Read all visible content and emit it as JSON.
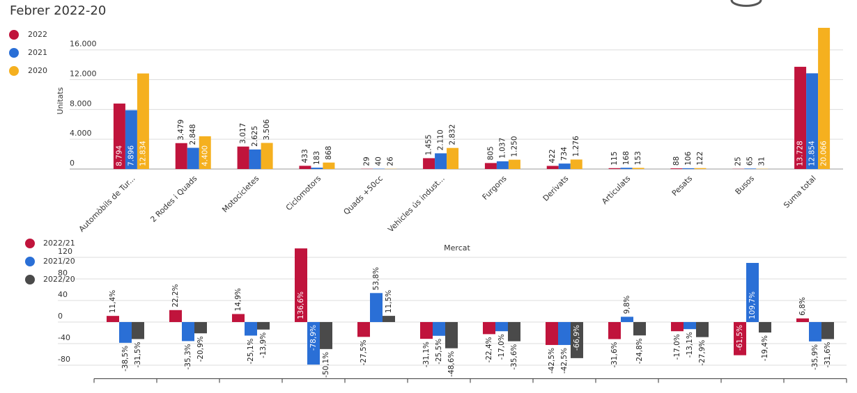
{
  "title": "Febrer 2022-20",
  "chart_data": [
    {
      "type": "bar",
      "y_label": "Unitats",
      "categories": [
        "Automòbils de Tur...",
        "2 Rodes i Quads",
        "Motocicletes",
        "Ciclomotors",
        "Quads +50cc",
        "Vehicles ús indust...",
        "Furgons",
        "Derivats",
        "Articulats",
        "Pesats",
        "Busos",
        "Suma total"
      ],
      "series": [
        {
          "name": "2022",
          "color": "#c0143c",
          "values": [
            8794,
            3479,
            3017,
            433,
            29,
            1455,
            805,
            422,
            115,
            88,
            25,
            13728
          ],
          "value_labels": [
            "8.794",
            "3.479",
            "3.017",
            "433",
            "29",
            "1.455",
            "805",
            "422",
            "115",
            "88",
            "25",
            "13.728"
          ]
        },
        {
          "name": "2021",
          "color": "#2a6fd6",
          "values": [
            7896,
            2848,
            2625,
            183,
            40,
            2110,
            1037,
            734,
            168,
            106,
            65,
            12854
          ],
          "value_labels": [
            "7.896",
            "2.848",
            "2.625",
            "183",
            "40",
            "2.110",
            "1.037",
            "734",
            "168",
            "106",
            "65",
            "12.854"
          ]
        },
        {
          "name": "2020",
          "color": "#f5b01f",
          "values": [
            12834,
            4400,
            3506,
            868,
            26,
            2832,
            1250,
            1276,
            153,
            122,
            31,
            20066
          ],
          "value_labels": [
            "12.834",
            "4.400",
            "3.506",
            "868",
            "26",
            "2.832",
            "1.250",
            "1.276",
            "153",
            "122",
            "31",
            "20.066"
          ]
        }
      ],
      "ylim": [
        0,
        17000
      ],
      "yticks": [
        0,
        {
          "value": 4000,
          "label": "4.000"
        },
        {
          "value": 8000,
          "label": "8.000"
        },
        {
          "value": 12000,
          "label": "12.000"
        },
        {
          "value": 16000,
          "label": "16.000"
        }
      ],
      "grid": true
    },
    {
      "type": "bar",
      "title": "Mercat",
      "series": [
        {
          "name": "2022/21",
          "color": "#c0143c",
          "values": [
            11.4,
            22.2,
            14.9,
            136.6,
            -27.5,
            -31.1,
            -22.4,
            -42.5,
            -31.6,
            -17.0,
            -61.5,
            6.8
          ],
          "value_labels": [
            "11,4%",
            "22,2%",
            "14,9%",
            "136,6%",
            "-27,5%",
            "-31,1%",
            "-22,4%",
            "-42,5%",
            "-31,6%",
            "-17,0%",
            "-61,5%",
            "6,8%"
          ]
        },
        {
          "name": "2021/20",
          "color": "#2a6fd6",
          "values": [
            -38.5,
            -35.3,
            -25.1,
            -78.9,
            53.8,
            -25.5,
            -17.0,
            -42.5,
            9.8,
            -13.1,
            109.7,
            -35.9
          ],
          "value_labels": [
            "-38,5%",
            "-35,3%",
            "-25,1%",
            "-78,9%",
            "53,8%",
            "-25,5%",
            "-17,0%",
            "-42,5%",
            "9,8%",
            "-13,1%",
            "109,7%",
            "-35,9%"
          ]
        },
        {
          "name": "2022/20",
          "color": "#4a4a4a",
          "values": [
            -31.5,
            -20.9,
            -13.9,
            -50.1,
            11.5,
            -48.6,
            -35.6,
            -66.9,
            -24.8,
            -27.9,
            -19.4,
            -31.6
          ],
          "value_labels": [
            "-31,5%",
            "-20,9%",
            "-13,9%",
            "-50,1%",
            "11,5%",
            "-48,6%",
            "-35,6%",
            "-66,9%",
            "-24,8%",
            "-27,9%",
            "-19,4%",
            "-31,6%"
          ]
        }
      ],
      "ylim": [
        -105,
        140
      ],
      "yticks": [
        -80,
        -40,
        0,
        40,
        80,
        120
      ],
      "grid": true
    }
  ]
}
